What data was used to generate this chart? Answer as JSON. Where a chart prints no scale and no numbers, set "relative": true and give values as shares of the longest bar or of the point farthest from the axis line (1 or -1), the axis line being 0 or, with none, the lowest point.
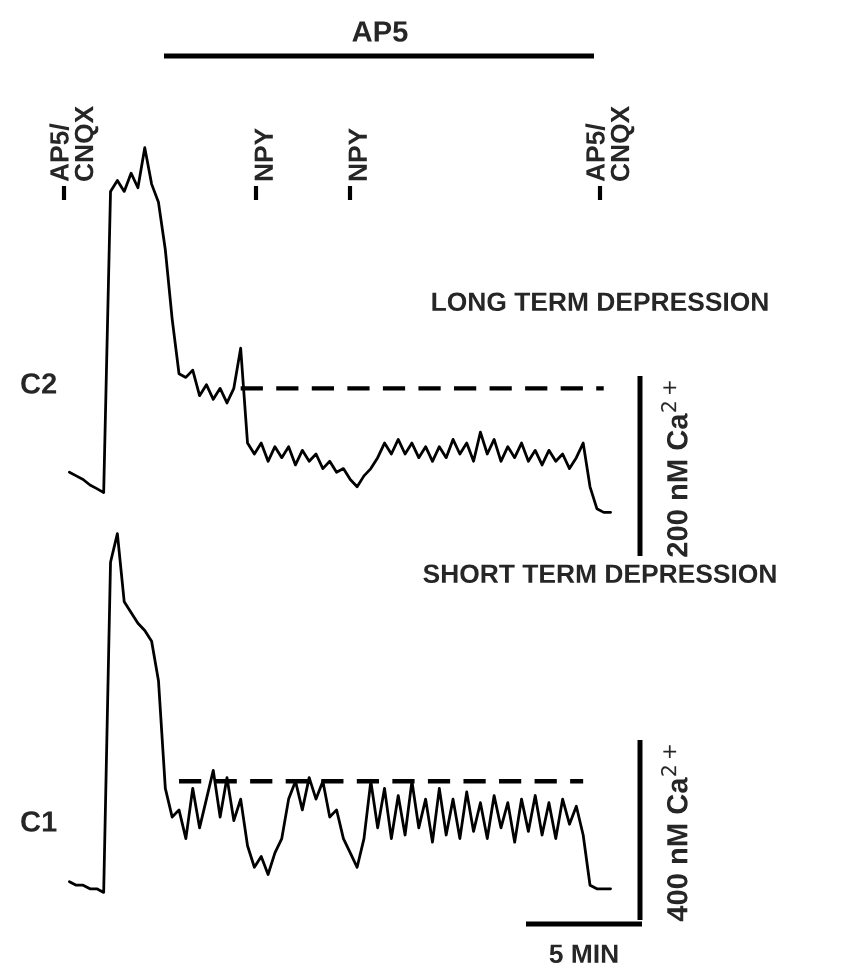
{
  "chart_data": [
    {
      "type": "line",
      "relative": true,
      "title": "LONG TERM DEPRESSION",
      "ylabel": "C2",
      "tick_labels": false,
      "categories": [
        null,
        null,
        null,
        null,
        null,
        null,
        null,
        null,
        null,
        null,
        null,
        null,
        null,
        null,
        null,
        null,
        null,
        null,
        null,
        null,
        null,
        null,
        null,
        null,
        null,
        null,
        null,
        null,
        null,
        null,
        null,
        null,
        null,
        null,
        null,
        null,
        null,
        null,
        null,
        null,
        null,
        null,
        null,
        null,
        null,
        null,
        null,
        null,
        null,
        null,
        null,
        null,
        null,
        null,
        null,
        null,
        null,
        null,
        null,
        null,
        null,
        null,
        null,
        null,
        null,
        null,
        null,
        null,
        null,
        null,
        null,
        null,
        null,
        null,
        null,
        null,
        null,
        null,
        null,
        null
      ],
      "series": [
        {
          "color": "#000000",
          "values": [
            0.11,
            0.1,
            0.09,
            0.075,
            0.065,
            0.054,
            0.88,
            0.91,
            0.88,
            0.93,
            0.89,
            1.0,
            0.9,
            0.85,
            0.72,
            0.53,
            0.38,
            0.37,
            0.39,
            0.32,
            0.35,
            0.31,
            0.34,
            0.3,
            0.34,
            0.45,
            0.19,
            0.16,
            0.19,
            0.14,
            0.18,
            0.15,
            0.18,
            0.13,
            0.17,
            0.14,
            0.16,
            0.12,
            0.14,
            0.11,
            0.12,
            0.09,
            0.07,
            0.1,
            0.12,
            0.15,
            0.19,
            0.16,
            0.2,
            0.16,
            0.19,
            0.15,
            0.18,
            0.14,
            0.18,
            0.15,
            0.2,
            0.16,
            0.19,
            0.14,
            0.22,
            0.16,
            0.2,
            0.14,
            0.18,
            0.15,
            0.19,
            0.14,
            0.17,
            0.13,
            0.17,
            0.14,
            0.16,
            0.12,
            0.15,
            0.19,
            0.07,
            0.01,
            0.0,
            0.0
          ]
        },
        {
          "type": "line",
          "line_style": "dashed",
          "color": "#000000",
          "values": [
            null,
            null,
            null,
            null,
            null,
            null,
            null,
            null,
            null,
            null,
            null,
            null,
            null,
            null,
            null,
            null,
            null,
            null,
            null,
            null,
            null,
            null,
            null,
            null,
            null,
            0.34,
            0.34,
            0.34,
            0.34,
            0.34,
            0.34,
            0.34,
            0.34,
            0.34,
            0.34,
            0.34,
            0.34,
            0.34,
            0.34,
            0.34,
            0.34,
            0.34,
            0.34,
            0.34,
            0.34,
            0.34,
            0.34,
            0.34,
            0.34,
            0.34,
            0.34,
            0.34,
            0.34,
            0.34,
            0.34,
            0.34,
            0.34,
            0.34,
            0.34,
            0.34,
            0.34,
            0.34,
            0.34,
            0.34,
            0.34,
            0.34,
            0.34,
            0.34,
            0.34,
            0.34,
            0.34,
            0.34,
            0.34,
            0.34,
            0.34,
            0.34,
            0.34,
            0.34,
            0.34,
            null
          ]
        }
      ],
      "annotations": [
        "AP5",
        "AP5/\nCNQX",
        "NPY",
        "NPY",
        "AP5/\nCNQX",
        "200 nM Ca$^{2+}$"
      ]
    },
    {
      "type": "line",
      "relative": true,
      "title": "SHORT TERM DEPRESSION",
      "ylabel": "C1",
      "tick_labels": false,
      "categories": [
        null,
        null,
        null,
        null,
        null,
        null,
        null,
        null,
        null,
        null,
        null,
        null,
        null,
        null,
        null,
        null,
        null,
        null,
        null,
        null,
        null,
        null,
        null,
        null,
        null,
        null,
        null,
        null,
        null,
        null,
        null,
        null,
        null,
        null,
        null,
        null,
        null,
        null,
        null,
        null,
        null,
        null,
        null,
        null,
        null,
        null,
        null,
        null,
        null,
        null,
        null,
        null,
        null,
        null,
        null,
        null,
        null,
        null,
        null,
        null,
        null,
        null,
        null,
        null,
        null,
        null,
        null,
        null,
        null,
        null,
        null,
        null,
        null,
        null,
        null,
        null,
        null,
        null,
        null,
        null
      ],
      "series": [
        {
          "color": "#000000",
          "values": [
            0.03,
            0.02,
            0.02,
            0.01,
            0.01,
            0.0,
            0.92,
            1.0,
            0.81,
            0.78,
            0.75,
            0.73,
            0.7,
            0.59,
            0.29,
            0.21,
            0.23,
            0.15,
            0.29,
            0.18,
            0.26,
            0.34,
            0.21,
            0.32,
            0.2,
            0.26,
            0.13,
            0.07,
            0.1,
            0.05,
            0.11,
            0.15,
            0.26,
            0.31,
            0.23,
            0.32,
            0.26,
            0.31,
            0.21,
            0.23,
            0.15,
            0.11,
            0.07,
            0.15,
            0.31,
            0.18,
            0.29,
            0.15,
            0.27,
            0.16,
            0.31,
            0.18,
            0.26,
            0.14,
            0.29,
            0.16,
            0.26,
            0.15,
            0.28,
            0.17,
            0.25,
            0.15,
            0.27,
            0.18,
            0.25,
            0.14,
            0.26,
            0.17,
            0.27,
            0.16,
            0.25,
            0.15,
            0.26,
            0.19,
            0.24,
            0.16,
            0.02,
            0.01,
            0.01,
            0.01
          ]
        },
        {
          "type": "line",
          "line_style": "dashed",
          "color": "#000000",
          "values": [
            null,
            null,
            null,
            null,
            null,
            null,
            null,
            null,
            null,
            null,
            null,
            null,
            null,
            null,
            null,
            null,
            0.31,
            0.31,
            0.31,
            0.31,
            0.31,
            0.31,
            0.31,
            0.31,
            0.31,
            0.31,
            0.31,
            0.31,
            0.31,
            0.31,
            0.31,
            0.31,
            0.31,
            0.31,
            0.31,
            0.31,
            0.31,
            0.31,
            0.31,
            0.31,
            0.31,
            0.31,
            0.31,
            0.31,
            0.31,
            0.31,
            0.31,
            0.31,
            0.31,
            0.31,
            0.31,
            0.31,
            0.31,
            0.31,
            0.31,
            0.31,
            0.31,
            0.31,
            0.31,
            0.31,
            0.31,
            0.31,
            0.31,
            0.31,
            0.31,
            0.31,
            0.31,
            0.31,
            0.31,
            0.31,
            0.31,
            0.31,
            0.31,
            0.31,
            0.31,
            0.31,
            null,
            null,
            null,
            null
          ]
        }
      ],
      "annotations": [
        "400 nM Ca$^{2+}$",
        "5 MIN"
      ]
    }
  ]
}
